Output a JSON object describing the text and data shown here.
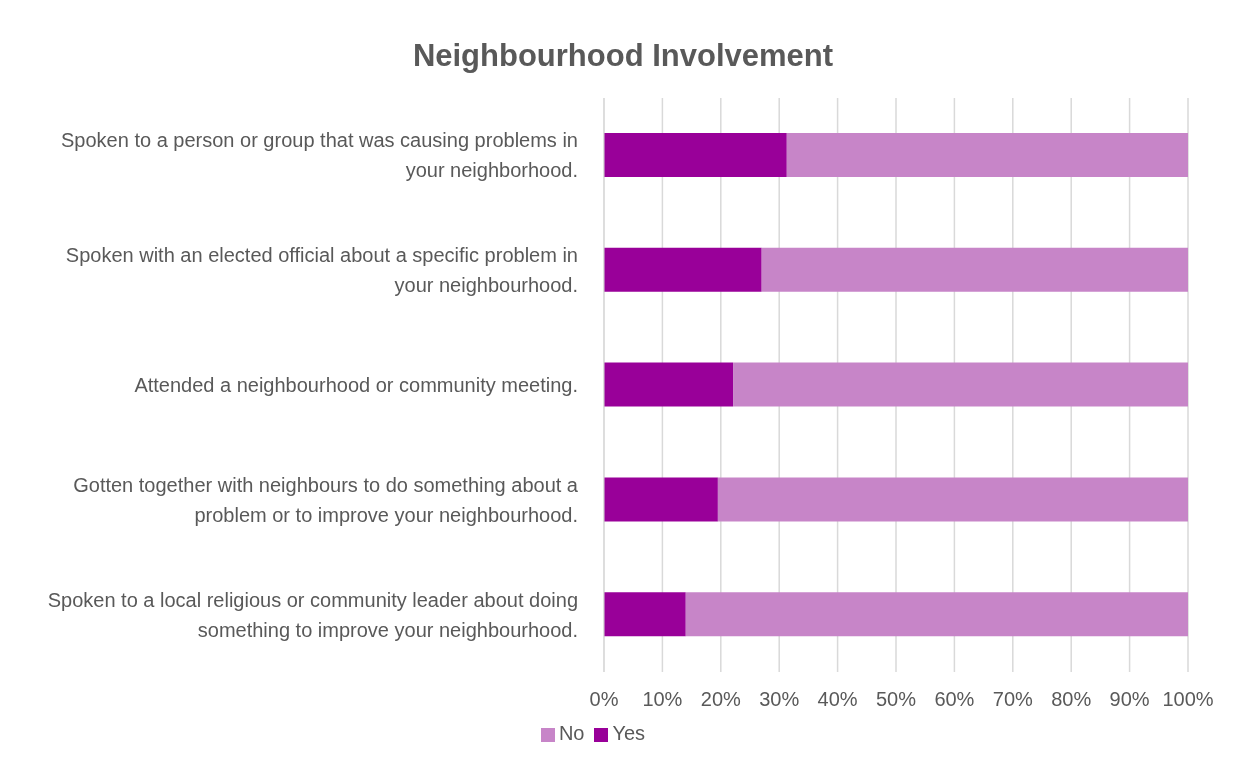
{
  "chart_data": {
    "type": "bar",
    "title": "Neighbourhood Involvement",
    "orientation": "horizontal",
    "stacked": true,
    "categories": [
      "Spoken to a person or group that was causing problems in your neighborhood.",
      "Spoken with an elected official about a specific problem in your neighbourhood.",
      "Attended a neighbourhood or community meeting.",
      "Gotten together with neighbours to do something about a problem or to improve your neighbourhood.",
      "Spoken to a local religious or community leader about doing something to improve your neighbourhood."
    ],
    "series": [
      {
        "name": "Yes",
        "color": "#990099",
        "values": [
          31.3,
          27.0,
          22.1,
          19.5,
          14.0
        ]
      },
      {
        "name": "No",
        "color": "#c785c8",
        "values": [
          68.7,
          73.0,
          77.9,
          80.5,
          86.0
        ]
      }
    ],
    "xlim": [
      0,
      100
    ],
    "xticks": [
      {
        "value": 0,
        "label": "0%"
      },
      {
        "value": 10,
        "label": "10%"
      },
      {
        "value": 20,
        "label": "20%"
      },
      {
        "value": 30,
        "label": "30%"
      },
      {
        "value": 40,
        "label": "40%"
      },
      {
        "value": 50,
        "label": "50%"
      },
      {
        "value": 60,
        "label": "60%"
      },
      {
        "value": 70,
        "label": "70%"
      },
      {
        "value": 80,
        "label": "80%"
      },
      {
        "value": 90,
        "label": "90%"
      },
      {
        "value": 100,
        "label": "100%"
      }
    ],
    "grid": "x",
    "legend": "bottom"
  }
}
